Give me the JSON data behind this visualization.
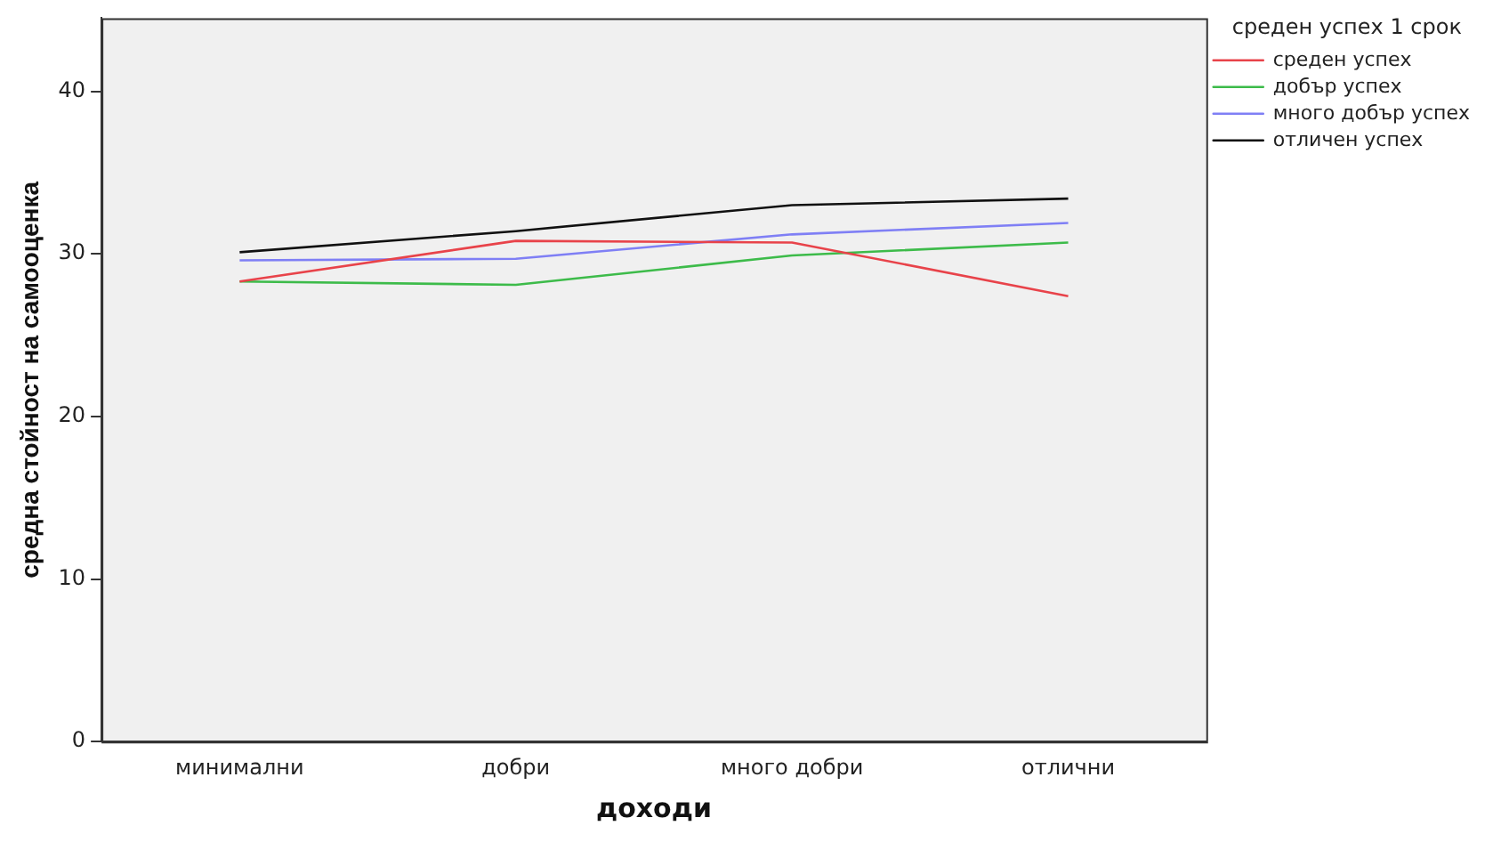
{
  "chart_data": {
    "type": "line",
    "xlabel": "доходи",
    "ylabel": "средна стойност на самооценка",
    "legend_title": "среден успех 1 срок",
    "categories": [
      "минимални",
      "добри",
      "много добри",
      "отлични"
    ],
    "series": [
      {
        "name": "среден успех",
        "color": "#e8434a",
        "values": [
          28.3,
          30.8,
          30.7,
          27.4
        ]
      },
      {
        "name": "добър успех",
        "color": "#3dbb4a",
        "values": [
          28.3,
          28.1,
          29.9,
          30.7
        ]
      },
      {
        "name": "много добър успех",
        "color": "#7f7ff5",
        "values": [
          29.6,
          29.7,
          31.2,
          31.9
        ]
      },
      {
        "name": "отличен успех",
        "color": "#111111",
        "values": [
          30.1,
          31.4,
          33.0,
          33.4
        ]
      }
    ],
    "ylim": [
      0,
      44.5
    ],
    "yticks": [
      0,
      10,
      20,
      30,
      40
    ],
    "grid": false,
    "legend": "right",
    "marker": "none",
    "line_style": "solid"
  }
}
